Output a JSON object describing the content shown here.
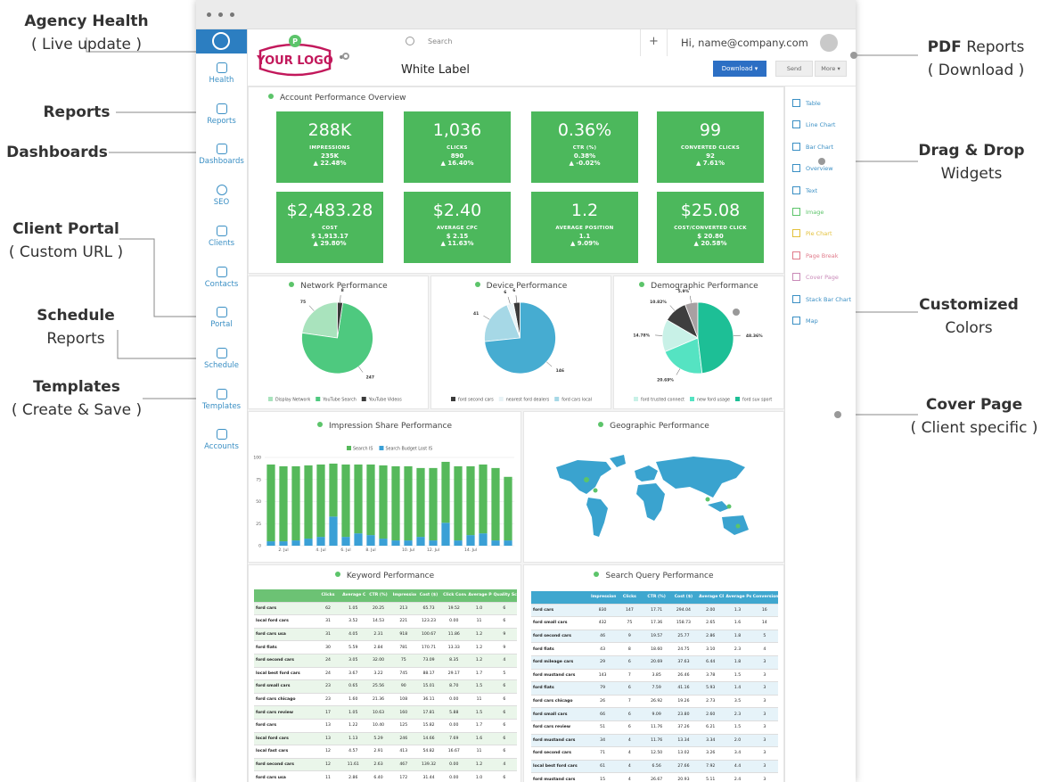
{
  "annotations": {
    "left": [
      {
        "title": "Agency Health",
        "subtitle": "( Live update )"
      },
      {
        "title": "Reports"
      },
      {
        "title": "Dashboards"
      },
      {
        "title": "Client Portal",
        "subtitle": "( Custom URL )"
      },
      {
        "title": "Schedule",
        "subtitle": "Reports"
      },
      {
        "title": "Templates",
        "subtitle": "( Create & Save )"
      }
    ],
    "right": [
      {
        "title": "PDF",
        "title_rest": "Reports",
        "subtitle": "( Download )"
      },
      {
        "title": "Drag & Drop",
        "subtitle": "Widgets"
      },
      {
        "title": "Customized",
        "subtitle": "Colors"
      },
      {
        "title": "Cover Page",
        "subtitle": "( Client specific )"
      }
    ]
  },
  "header": {
    "logo": "YOUR LOGO",
    "white_label": "White Label",
    "search": "Search",
    "user": "Hi, name@company.com",
    "download": "Download",
    "send": "Send",
    "more": "More"
  },
  "sidebar": [
    "Health",
    "Reports",
    "Dashboards",
    "SEO",
    "Clients",
    "Contacts",
    "Portal",
    "Schedule",
    "Templates",
    "Accounts"
  ],
  "widgets": [
    "Table",
    "Line Chart",
    "Bar Chart",
    "Overview",
    "Text",
    "Image",
    "Pie Chart",
    "Page Break",
    "Cover Page",
    "Stack Bar Chart",
    "Map"
  ],
  "overview": {
    "title": "Account Performance Overview",
    "tiles": [
      {
        "value": "288K",
        "label": "IMPRESSIONS",
        "sub": "235K",
        "change": "▲ 22.48%"
      },
      {
        "value": "1,036",
        "label": "CLICKS",
        "sub": "890",
        "change": "▲ 16.40%"
      },
      {
        "value": "0.36%",
        "label": "CTR (%)",
        "sub": "0.38%",
        "change": "▲ -0.02%"
      },
      {
        "value": "99",
        "label": "CONVERTED CLICKS",
        "sub": "92",
        "change": "▲ 7.61%"
      },
      {
        "value": "$2,483.28",
        "label": "COST",
        "sub": "$ 1,913.17",
        "change": "▲ 29.80%"
      },
      {
        "value": "$2.40",
        "label": "AVERAGE CPC",
        "sub": "$ 2.15",
        "change": "▲ 11.63%"
      },
      {
        "value": "1.2",
        "label": "AVERAGE POSITION",
        "sub": "1.1",
        "change": "▲ 9.09%"
      },
      {
        "value": "$25.08",
        "label": "COST/CONVERTED CLICK",
        "sub": "$ 20.80",
        "change": "▲ 20.58%"
      }
    ]
  },
  "chart_data": [
    {
      "type": "pie",
      "title": "Network Performance",
      "categories": [
        "Display Network",
        "YouTube Search",
        "YouTube Videos"
      ],
      "values": [
        75,
        247,
        8
      ],
      "colors": [
        "#a9e3bd",
        "#4ec97f",
        "#3b3b3b"
      ]
    },
    {
      "type": "pie",
      "title": "Device Performance",
      "categories": [
        "ford second cars",
        "nearest ford dealers",
        "ford cars local",
        null
      ],
      "values": [
        6,
        6,
        41,
        146
      ],
      "colors": [
        "#3b3b3b",
        "#e8f3f6",
        "#a6d8e6",
        "#46acd1"
      ]
    },
    {
      "type": "pie",
      "title": "Demographic Performance",
      "categories": [
        null,
        null,
        "ford trusted connect",
        "new ford usage",
        "ford suv sport"
      ],
      "values": [
        5.9,
        10.82,
        14.78,
        20.69,
        48.36
      ],
      "value_labels": [
        "5.9%",
        "10.82%",
        "14.78%",
        "20.69%",
        "48.36%"
      ],
      "colors": [
        "#a7a0a2",
        "#3e3e3e",
        "#c8f1e7",
        "#55e3c2",
        "#1dbf96"
      ]
    },
    {
      "type": "bar",
      "title": "Impression Share Performance",
      "stacked": true,
      "categories": [
        null,
        "2. Jul",
        null,
        null,
        "4. Jul",
        null,
        "6. Jul",
        null,
        "8. Jul",
        null,
        null,
        "10. Jul",
        null,
        "12. Jul",
        null,
        null,
        "14. Jul",
        null,
        null,
        null
      ],
      "series": [
        {
          "name": "Search IS",
          "color": "#56b95b",
          "values": [
            87,
            85,
            84,
            83,
            82,
            60,
            82,
            78,
            80,
            83,
            84,
            84,
            78,
            82,
            69,
            84,
            78,
            78,
            82,
            72
          ]
        },
        {
          "name": "Search Budget Lost IS",
          "color": "#3aa0d6",
          "values": [
            5,
            5,
            6,
            8,
            10,
            33,
            10,
            14,
            12,
            8,
            6,
            6,
            10,
            6,
            26,
            6,
            12,
            14,
            6,
            6
          ]
        }
      ],
      "ylim": [
        0,
        100
      ],
      "yticks": [
        0,
        25,
        50,
        75,
        100
      ],
      "grid": true
    }
  ],
  "geo": {
    "title": "Geographic Performance"
  },
  "tables": {
    "keyword": {
      "title": "Keyword Performance",
      "header": [
        "",
        "Clicks",
        "Average CPC ($)",
        "CTR (%)",
        "Impressions",
        "Cost ($)",
        "Click Conv. Rate",
        "Average Position",
        "Quality Score"
      ],
      "rows": [
        [
          "ford cars",
          "62",
          "1.05",
          "20.25",
          "213",
          "65.73",
          "19.52",
          "1.0",
          "6"
        ],
        [
          "local ford cars",
          "31",
          "3.52",
          "14.53",
          "221",
          "123.23",
          "0.00",
          "11",
          "6"
        ],
        [
          "ford cars usa",
          "31",
          "4.05",
          "2.31",
          "918",
          "100.67",
          "11.86",
          "1.2",
          "9"
        ],
        [
          "ford fiats",
          "30",
          "5.59",
          "2.84",
          "781",
          "170.71",
          "13.33",
          "1.2",
          "9"
        ],
        [
          "ford second cars",
          "24",
          "3.05",
          "32.00",
          "75",
          "73.09",
          "8.35",
          "1.2",
          "4"
        ],
        [
          "local best ford cars",
          "24",
          "3.67",
          "3.22",
          "745",
          "88.17",
          "29.17",
          "1.7",
          "5"
        ],
        [
          "ford small cars",
          "23",
          "0.65",
          "25.56",
          "90",
          "15.01",
          "8.70",
          "1.5",
          "6"
        ],
        [
          "ford cars chicago",
          "23",
          "1.60",
          "21.36",
          "108",
          "36.11",
          "0.00",
          "11",
          "6"
        ],
        [
          "ford cars review",
          "17",
          "1.05",
          "10.63",
          "160",
          "17.81",
          "5.88",
          "1.5",
          "6"
        ],
        [
          "ford cars",
          "13",
          "1.22",
          "10.40",
          "125",
          "15.82",
          "0.00",
          "1.7",
          "6"
        ],
        [
          "local ford cars",
          "13",
          "1.13",
          "5.29",
          "246",
          "14.66",
          "7.69",
          "1.6",
          "6"
        ],
        [
          "local fast cars",
          "12",
          "4.57",
          "2.91",
          "413",
          "54.82",
          "16.67",
          "11",
          "6"
        ],
        [
          "ford second cars",
          "12",
          "11.61",
          "2.63",
          "467",
          "139.32",
          "0.00",
          "1.2",
          "4"
        ],
        [
          "ford cars usa",
          "11",
          "2.86",
          "6.40",
          "172",
          "31.44",
          "0.00",
          "1.0",
          "6"
        ]
      ]
    },
    "search": {
      "title": "Search Query Performance",
      "header": [
        "",
        "Impressions",
        "Clicks",
        "CTR (%)",
        "Cost ($)",
        "Average CPC ($)",
        "Average Position",
        "Conversions"
      ],
      "rows": [
        [
          "ford cars",
          "830",
          "147",
          "17.71",
          "294.04",
          "2.00",
          "1.3",
          "16"
        ],
        [
          "ford small cars",
          "432",
          "75",
          "17.36",
          "158.73",
          "2.65",
          "1.6",
          "14"
        ],
        [
          "ford second cars",
          "46",
          "9",
          "19.57",
          "25.77",
          "2.86",
          "1.8",
          "5"
        ],
        [
          "ford fiats",
          "43",
          "8",
          "18.60",
          "24.75",
          "3.10",
          "2.3",
          "4"
        ],
        [
          "ford mileage cars",
          "29",
          "6",
          "20.69",
          "37.63",
          "6.44",
          "1.8",
          "3"
        ],
        [
          "ford mustand cars",
          "143",
          "7",
          "3.85",
          "26.46",
          "3.78",
          "1.5",
          "3"
        ],
        [
          "ford fiats",
          "79",
          "6",
          "7.59",
          "41.16",
          "5.93",
          "1.4",
          "3"
        ],
        [
          "ford cars chicago",
          "26",
          "7",
          "26.92",
          "19.26",
          "2.73",
          "3.5",
          "3"
        ],
        [
          "ford small cars",
          "66",
          "6",
          "9.09",
          "23.80",
          "2.60",
          "2.3",
          "3"
        ],
        [
          "ford cars review",
          "51",
          "6",
          "11.76",
          "37.26",
          "6.21",
          "1.5",
          "3"
        ],
        [
          "ford mustand cars",
          "34",
          "4",
          "11.76",
          "13.34",
          "3.34",
          "2.0",
          "3"
        ],
        [
          "ford second cars",
          "71",
          "4",
          "12.50",
          "13.02",
          "3.26",
          "3.4",
          "3"
        ],
        [
          "local best ford cars",
          "61",
          "4",
          "6.56",
          "27.66",
          "7.92",
          "4.4",
          "3"
        ],
        [
          "ford mustand cars",
          "15",
          "4",
          "26.67",
          "20.93",
          "5.11",
          "2.4",
          "3"
        ]
      ]
    }
  }
}
